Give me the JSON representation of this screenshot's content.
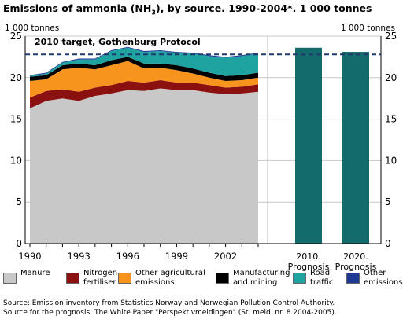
{
  "header": {
    "title_pre": "Emissions of ammonia (NH",
    "title_sub": "3",
    "title_post": "), by source. 1990-2004*. 1 000 tonnes",
    "unit_left": "1 000 tonnes",
    "unit_right": "1 000 tonnes"
  },
  "chart_data": {
    "type": "area",
    "title": "Emissions of ammonia (NH3), by source. 1990-2004*. 1 000 tonnes",
    "ylabel": "1 000 tonnes",
    "ylim": [
      0,
      25
    ],
    "y_ticks": [
      0,
      5,
      10,
      15,
      20,
      25
    ],
    "x": [
      1990,
      1991,
      1992,
      1993,
      1994,
      1995,
      1996,
      1997,
      1998,
      1999,
      2000,
      2001,
      2002,
      2003,
      2004
    ],
    "x_tick_labels": [
      "1990",
      "1993",
      "1996",
      "1999",
      "2002"
    ],
    "series": [
      {
        "name": "Manure",
        "color": "#c8c8c8",
        "values": [
          16.3,
          17.2,
          17.5,
          17.2,
          17.8,
          18.1,
          18.5,
          18.4,
          18.7,
          18.5,
          18.5,
          18.2,
          18.0,
          18.1,
          18.3
        ]
      },
      {
        "name": "Nitrogen fertiliser",
        "color": "#8b1010",
        "values": [
          1.3,
          1.2,
          1.1,
          1.1,
          1.0,
          1.0,
          1.1,
          1.0,
          1.0,
          0.9,
          0.9,
          0.9,
          0.8,
          0.8,
          0.9
        ]
      },
      {
        "name": "Other agricultural emissions",
        "color": "#f7941d",
        "values": [
          2.0,
          1.4,
          2.4,
          2.9,
          2.2,
          2.4,
          2.4,
          1.7,
          1.5,
          1.5,
          1.1,
          0.9,
          0.8,
          0.8,
          0.8
        ]
      },
      {
        "name": "Manufacturing and mining",
        "color": "#000000",
        "values": [
          0.5,
          0.5,
          0.5,
          0.5,
          0.5,
          0.6,
          0.5,
          0.6,
          0.5,
          0.6,
          0.6,
          0.6,
          0.6,
          0.6,
          0.6
        ]
      },
      {
        "name": "Road traffic",
        "color": "#1fa3a0",
        "values": [
          0.1,
          0.2,
          0.3,
          0.5,
          0.7,
          1.1,
          1.1,
          1.4,
          1.5,
          1.5,
          1.8,
          2.0,
          2.2,
          2.3,
          2.3
        ]
      },
      {
        "name": "Other emissions",
        "color": "#1f3a93",
        "values": [
          0.1,
          0.1,
          0.1,
          0.1,
          0.1,
          0.1,
          0.1,
          0.1,
          0.1,
          0.1,
          0.1,
          0.1,
          0.1,
          0.1,
          0.1
        ]
      }
    ],
    "prognosis": {
      "categories": [
        "2010. Prognosis",
        "2020. Prognosis"
      ],
      "values": [
        23.6,
        23.1
      ],
      "color": "#146b6b"
    },
    "target": {
      "label": "2010 target, Gothenburg Protocol",
      "value": 22.8,
      "color": "#1f3a6b"
    },
    "grid": true
  },
  "legend": [
    {
      "label_lines": [
        "Manure"
      ],
      "color": "#c8c8c8"
    },
    {
      "label_lines": [
        "Nitrogen",
        "fertiliser"
      ],
      "color": "#8b1010"
    },
    {
      "label_lines": [
        "Other agricultural",
        "emissions"
      ],
      "color": "#f7941d"
    },
    {
      "label_lines": [
        "Manufacturing",
        "and mining"
      ],
      "color": "#000000"
    },
    {
      "label_lines": [
        "Road",
        "traffic"
      ],
      "color": "#1fa3a0"
    },
    {
      "label_lines": [
        "Other",
        "emissions"
      ],
      "color": "#1f3a93"
    }
  ],
  "footer": {
    "source_1": "Source: Emission inventory from Statistics Norway and Norwegian Pollution Control Authority.",
    "source_2": "Source for the prognosis: The White Paper \"Perspektivmeldingen\" (St. meld. nr. 8 2004-2005)."
  }
}
